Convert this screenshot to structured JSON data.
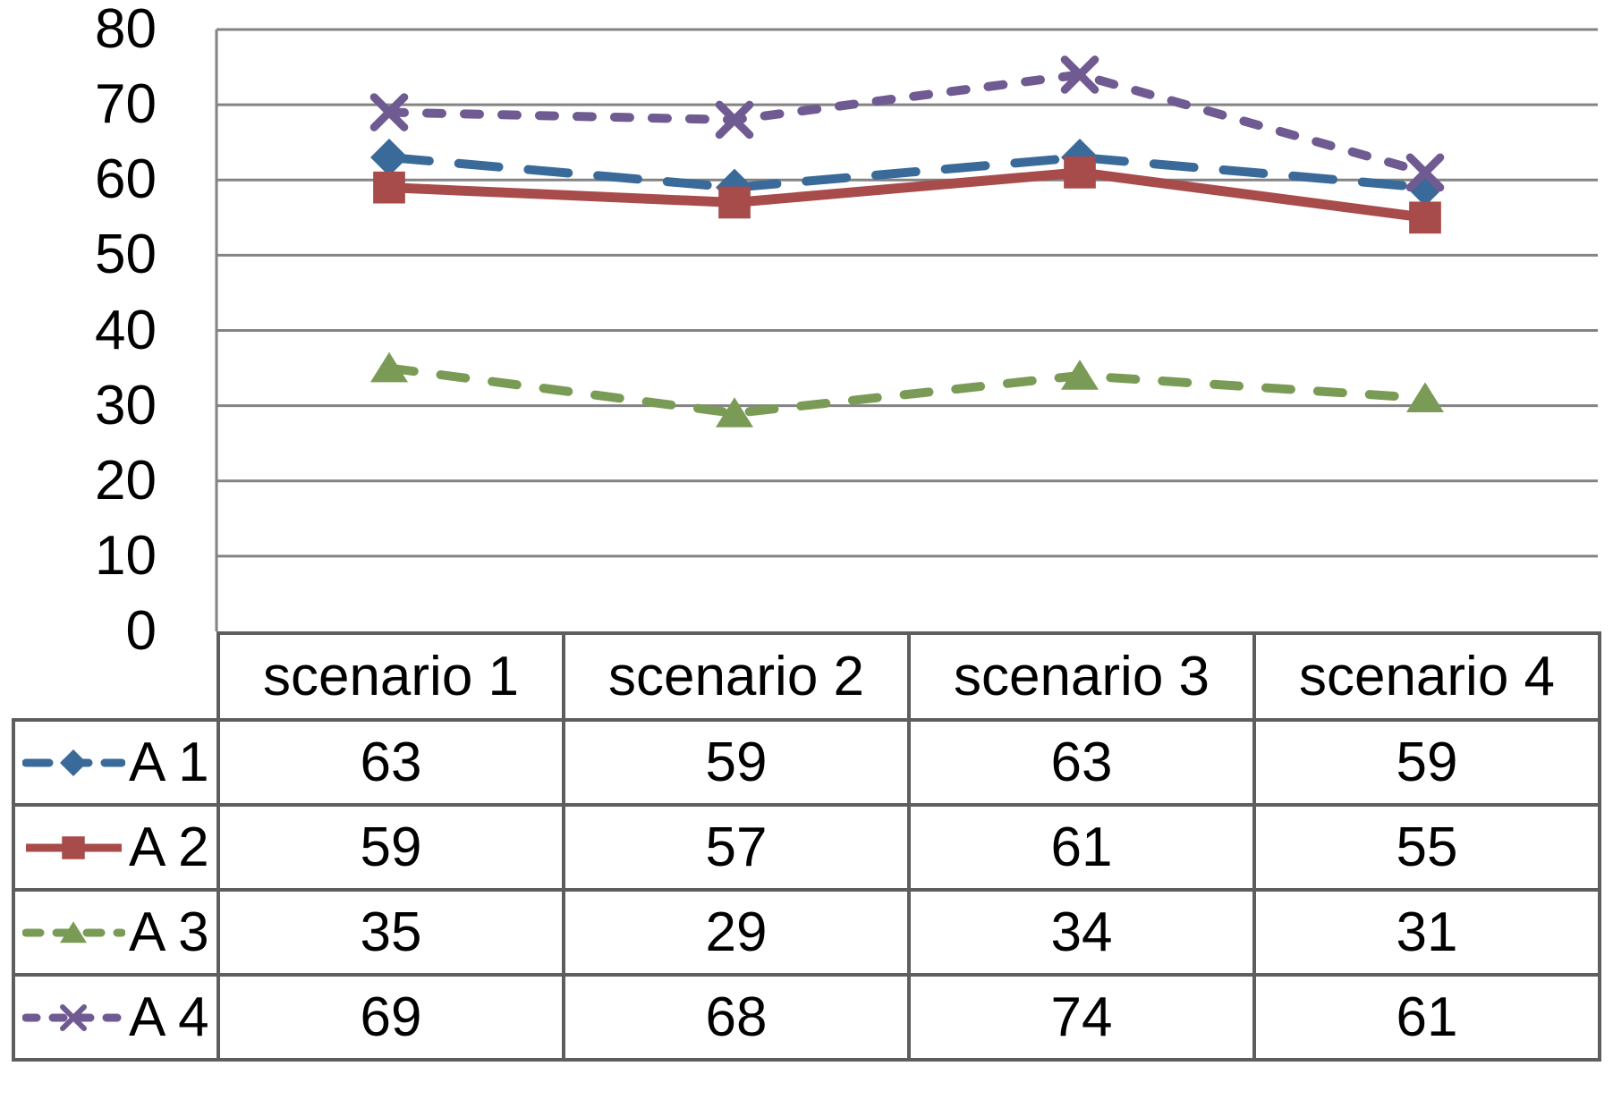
{
  "chart_data": {
    "type": "line",
    "title": "",
    "xlabel": "",
    "ylabel": "",
    "categories": [
      "scenario 1",
      "scenario 2",
      "scenario 3",
      "scenario 4"
    ],
    "series": [
      {
        "name": "A 1",
        "values": [
          63,
          59,
          63,
          59
        ],
        "color": "#3A6A99",
        "line_style": "long-dash",
        "marker": "diamond-marker"
      },
      {
        "name": "A 2",
        "values": [
          59,
          57,
          61,
          55
        ],
        "color": "#A84B4B",
        "line_style": "solid",
        "marker": "square-marker"
      },
      {
        "name": "A 3",
        "values": [
          35,
          29,
          34,
          31
        ],
        "color": "#7A9B55",
        "line_style": "dash",
        "marker": "triangle-marker"
      },
      {
        "name": "A 4",
        "values": [
          69,
          68,
          74,
          61
        ],
        "color": "#6F5B91",
        "line_style": "short-dash",
        "marker": "x-marker"
      }
    ],
    "ylim": [
      0,
      80
    ],
    "ytick_step": 10,
    "yticks": [
      "0",
      "10",
      "20",
      "30",
      "40",
      "50",
      "60",
      "70",
      "80"
    ],
    "grid": true,
    "gridline_color": "#838383",
    "table_border_color": "#5E5E5E",
    "legend_position": "data-table-left-column"
  }
}
